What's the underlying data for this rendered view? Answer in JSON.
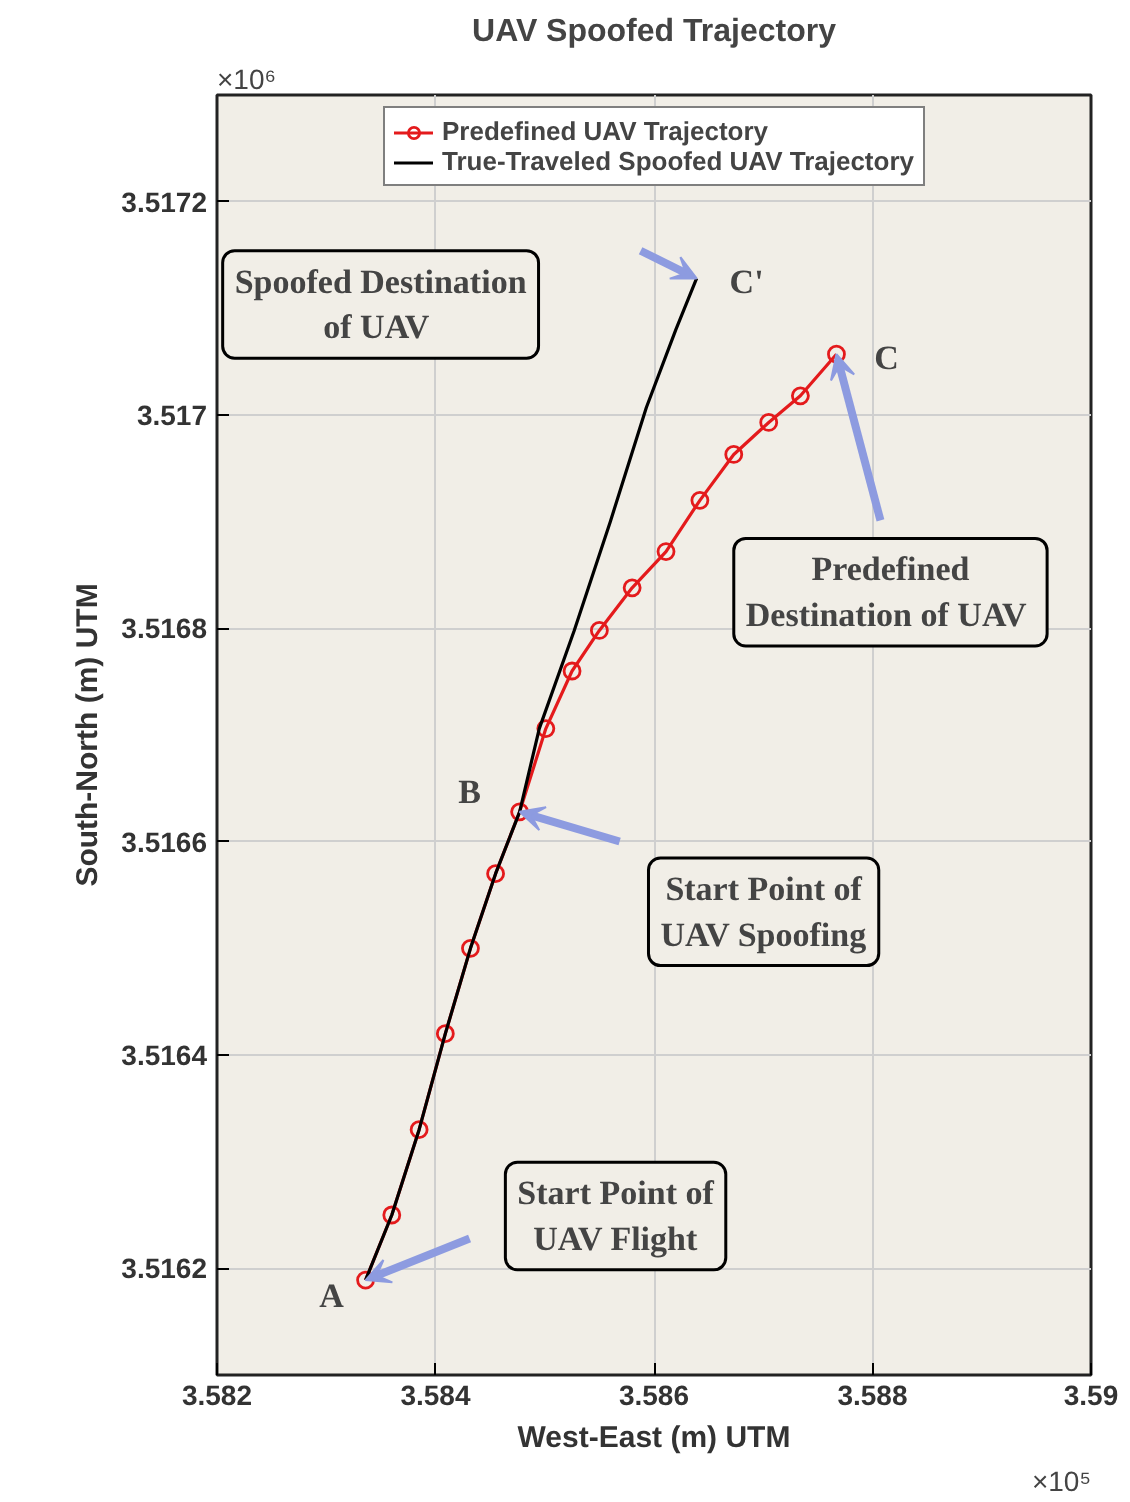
{
  "chart_data": {
    "type": "line",
    "title": "UAV Spoofed Trajectory",
    "xlabel": "West-East (m) UTM",
    "ylabel": "South-North (m) UTM",
    "xlim": [
      3.582,
      3.59
    ],
    "xticks": [
      3.582,
      3.584,
      3.586,
      3.588,
      3.59
    ],
    "ylim": [
      3.5161,
      3.5173
    ],
    "yticks": [
      3.5162,
      3.5164,
      3.5166,
      3.5168,
      3.517,
      3.5172
    ],
    "grid": true,
    "legend": "top",
    "series": [
      {
        "name": "Predefined UAV Trajectory",
        "color": "#e41a1c",
        "marker": "circle",
        "x": [
          3.58336,
          3.5836,
          3.58385,
          3.58409,
          3.58432,
          3.58455,
          3.58477,
          3.58501,
          3.58525,
          3.5855,
          3.5858,
          3.58611,
          3.58642,
          3.58673,
          3.58705,
          3.58734,
          3.58767
        ],
        "values": [
          3.516189,
          3.51625,
          3.51633,
          3.51642,
          3.5165,
          3.51657,
          3.516628,
          3.516706,
          3.51676,
          3.516798,
          3.516838,
          3.516872,
          3.51692,
          3.516963,
          3.516993,
          3.517018,
          3.517057
        ]
      },
      {
        "name": "True-Traveled Spoofed UAV Trajectory",
        "color": "#000000",
        "marker": "none",
        "x": [
          3.58336,
          3.5836,
          3.58385,
          3.58409,
          3.58432,
          3.58455,
          3.58477,
          3.58495,
          3.58527,
          3.5856,
          3.58593,
          3.5862,
          3.58639
        ],
        "values": [
          3.516189,
          3.51625,
          3.51633,
          3.51642,
          3.5165,
          3.51657,
          3.516628,
          3.516706,
          3.516798,
          3.5169,
          3.517007,
          3.51708,
          3.517128
        ]
      }
    ],
    "annotations": [
      {
        "text": "A",
        "x": 3.58336,
        "y": 3.516189
      },
      {
        "text": "B",
        "x": 3.58477,
        "y": 3.516628
      },
      {
        "text": "C",
        "x": 3.58767,
        "y": 3.517057
      },
      {
        "text": "C'",
        "x": 3.58639,
        "y": 3.517128
      },
      "Spoofed Destination\nof  UAV",
      {
        "text": "Predefined\nDestination of  UAV",
        "x": 3.58767,
        "y": 3.517057
      },
      "Start Point of\nUAV Spoofing",
      "Start Point of\nUAV Flight",
      "×10⁶",
      "×10⁵"
    ]
  }
}
